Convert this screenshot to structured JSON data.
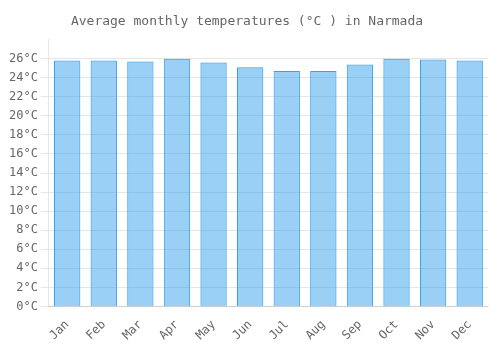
{
  "chart_data": {
    "type": "bar",
    "title": "Average monthly temperatures (°C ) in Narmada",
    "categories": [
      "Jan",
      "Feb",
      "Mar",
      "Apr",
      "May",
      "Jun",
      "Jul",
      "Aug",
      "Sep",
      "Oct",
      "Nov",
      "Dec"
    ],
    "values": [
      25.8,
      25.8,
      25.7,
      26.0,
      25.6,
      25.1,
      24.7,
      24.7,
      25.4,
      26.0,
      25.9,
      25.8
    ],
    "ylim": [
      0,
      28
    ],
    "yticks": [
      {
        "value": 0,
        "label": "0°C"
      },
      {
        "value": 2,
        "label": "2°C"
      },
      {
        "value": 4,
        "label": "4°C"
      },
      {
        "value": 6,
        "label": "6°C"
      },
      {
        "value": 8,
        "label": "8°C"
      },
      {
        "value": 10,
        "label": "10°C"
      },
      {
        "value": 12,
        "label": "12°C"
      },
      {
        "value": 14,
        "label": "14°C"
      },
      {
        "value": 16,
        "label": "16°C"
      },
      {
        "value": 18,
        "label": "18°C"
      },
      {
        "value": 20,
        "label": "20°C"
      },
      {
        "value": 22,
        "label": "22°C"
      },
      {
        "value": 24,
        "label": "24°C"
      },
      {
        "value": 26,
        "label": "26°C"
      }
    ],
    "grid": true
  }
}
